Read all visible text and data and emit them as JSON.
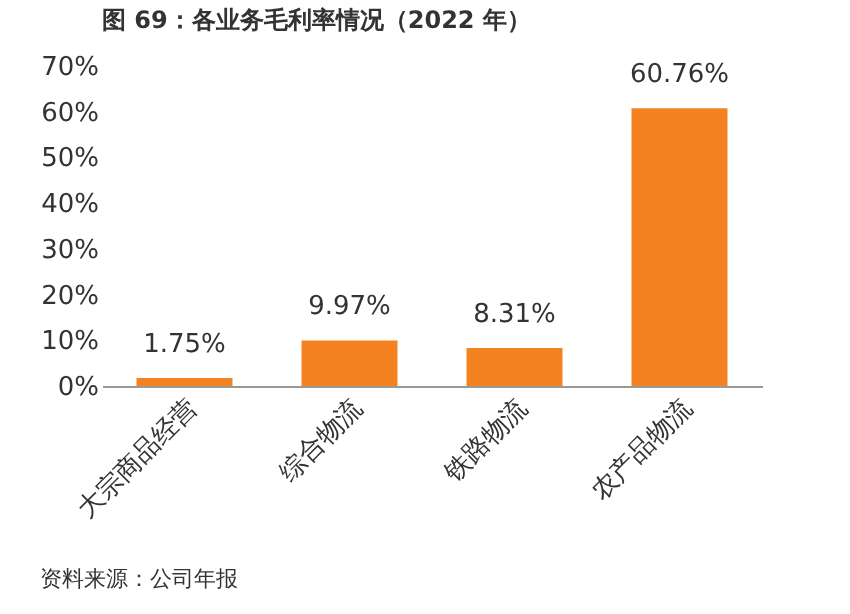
{
  "chart_data": {
    "type": "bar",
    "title": "图 69：各业务毛利率情况（2022 年）",
    "categories": [
      "大宗商品经营",
      "综合物流",
      "铁路物流",
      "农产品物流"
    ],
    "values": [
      1.75,
      9.97,
      8.31,
      60.76
    ],
    "value_labels": [
      "1.75%",
      "9.97%",
      "8.31%",
      "60.76%"
    ],
    "color": "#f58220",
    "ylim": [
      0,
      70
    ],
    "yticks": [
      {
        "value": 0,
        "label": "0%"
      },
      {
        "value": 10,
        "label": "10%"
      },
      {
        "value": 20,
        "label": "20%"
      },
      {
        "value": 30,
        "label": "30%"
      },
      {
        "value": 40,
        "label": "40%"
      },
      {
        "value": 50,
        "label": "50%"
      },
      {
        "value": 60,
        "label": "60%"
      },
      {
        "value": 70,
        "label": "70%"
      }
    ],
    "grid": false,
    "annotations": [
      "资料来源：公司年报"
    ]
  }
}
